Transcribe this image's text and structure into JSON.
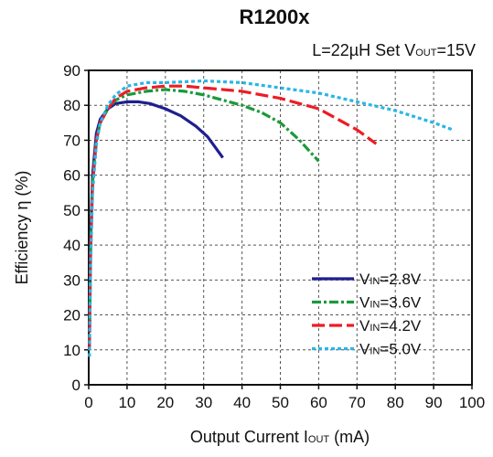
{
  "chart_data": {
    "type": "line",
    "title": "R1200x",
    "subtitle": {
      "lead": "L=22µH  Set V",
      "sub": "OUT",
      "tail": "=15V"
    },
    "xlabel": {
      "lead": "Output Current I",
      "sub": "OUT",
      "tail": " (mA)"
    },
    "ylabel": "Efficiency η (%)",
    "xlim": [
      0,
      100
    ],
    "ylim": [
      0,
      90
    ],
    "x_ticks": [
      0,
      10,
      20,
      30,
      40,
      50,
      60,
      70,
      80,
      90,
      100
    ],
    "y_ticks": [
      0,
      10,
      20,
      30,
      40,
      50,
      60,
      70,
      80,
      90
    ],
    "grid": true,
    "legend_position": "bottom-right",
    "series": [
      {
        "name": "VIN=2.8V",
        "label": {
          "lead": "V",
          "sub": "IN",
          "tail": "=2.8V"
        },
        "color": "#1f1f8f",
        "dash": "",
        "points": [
          [
            0.2,
            15
          ],
          [
            0.5,
            42
          ],
          [
            1,
            60
          ],
          [
            2,
            72
          ],
          [
            3,
            76
          ],
          [
            5,
            79
          ],
          [
            7,
            80.5
          ],
          [
            10,
            81
          ],
          [
            13,
            81
          ],
          [
            16,
            80.5
          ],
          [
            20,
            79
          ],
          [
            24,
            77
          ],
          [
            28,
            74
          ],
          [
            31,
            71
          ],
          [
            33,
            68
          ],
          [
            35,
            65
          ]
        ]
      },
      {
        "name": "VIN=3.6V",
        "label": {
          "lead": "V",
          "sub": "IN",
          "tail": "=3.6V"
        },
        "color": "#1a9a3a",
        "dash": "10 3 3 3",
        "points": [
          [
            0.2,
            12
          ],
          [
            0.5,
            40
          ],
          [
            1,
            58
          ],
          [
            2,
            70
          ],
          [
            3,
            75
          ],
          [
            5,
            79
          ],
          [
            7,
            81.5
          ],
          [
            10,
            83
          ],
          [
            15,
            84
          ],
          [
            20,
            84.5
          ],
          [
            25,
            84
          ],
          [
            30,
            83
          ],
          [
            35,
            81.5
          ],
          [
            40,
            80
          ],
          [
            45,
            78
          ],
          [
            50,
            75
          ],
          [
            55,
            70
          ],
          [
            60,
            64
          ]
        ]
      },
      {
        "name": "VIN=4.2V",
        "label": {
          "lead": "V",
          "sub": "IN",
          "tail": "=4.2V"
        },
        "color": "#ee1c24",
        "dash": "14 5",
        "points": [
          [
            0.2,
            10
          ],
          [
            0.5,
            38
          ],
          [
            1,
            57
          ],
          [
            2,
            70
          ],
          [
            3,
            75
          ],
          [
            5,
            79
          ],
          [
            7,
            82
          ],
          [
            10,
            84
          ],
          [
            15,
            85
          ],
          [
            20,
            85.5
          ],
          [
            25,
            85.5
          ],
          [
            30,
            85
          ],
          [
            40,
            84
          ],
          [
            50,
            82
          ],
          [
            60,
            79
          ],
          [
            65,
            76
          ],
          [
            70,
            73
          ],
          [
            75,
            69
          ]
        ]
      },
      {
        "name": "VIN=5.0V",
        "label": {
          "lead": "V",
          "sub": "IN",
          "tail": "=5.0V"
        },
        "color": "#29b6e6",
        "dash": "4 3",
        "points": [
          [
            0.2,
            8
          ],
          [
            0.5,
            35
          ],
          [
            1,
            55
          ],
          [
            2,
            69
          ],
          [
            3,
            75
          ],
          [
            5,
            80
          ],
          [
            7,
            83
          ],
          [
            10,
            85.5
          ],
          [
            15,
            86.5
          ],
          [
            20,
            86.5
          ],
          [
            30,
            87
          ],
          [
            40,
            86.5
          ],
          [
            50,
            85
          ],
          [
            60,
            83.5
          ],
          [
            70,
            81
          ],
          [
            80,
            78.5
          ],
          [
            90,
            75
          ],
          [
            95,
            73
          ]
        ]
      }
    ]
  }
}
